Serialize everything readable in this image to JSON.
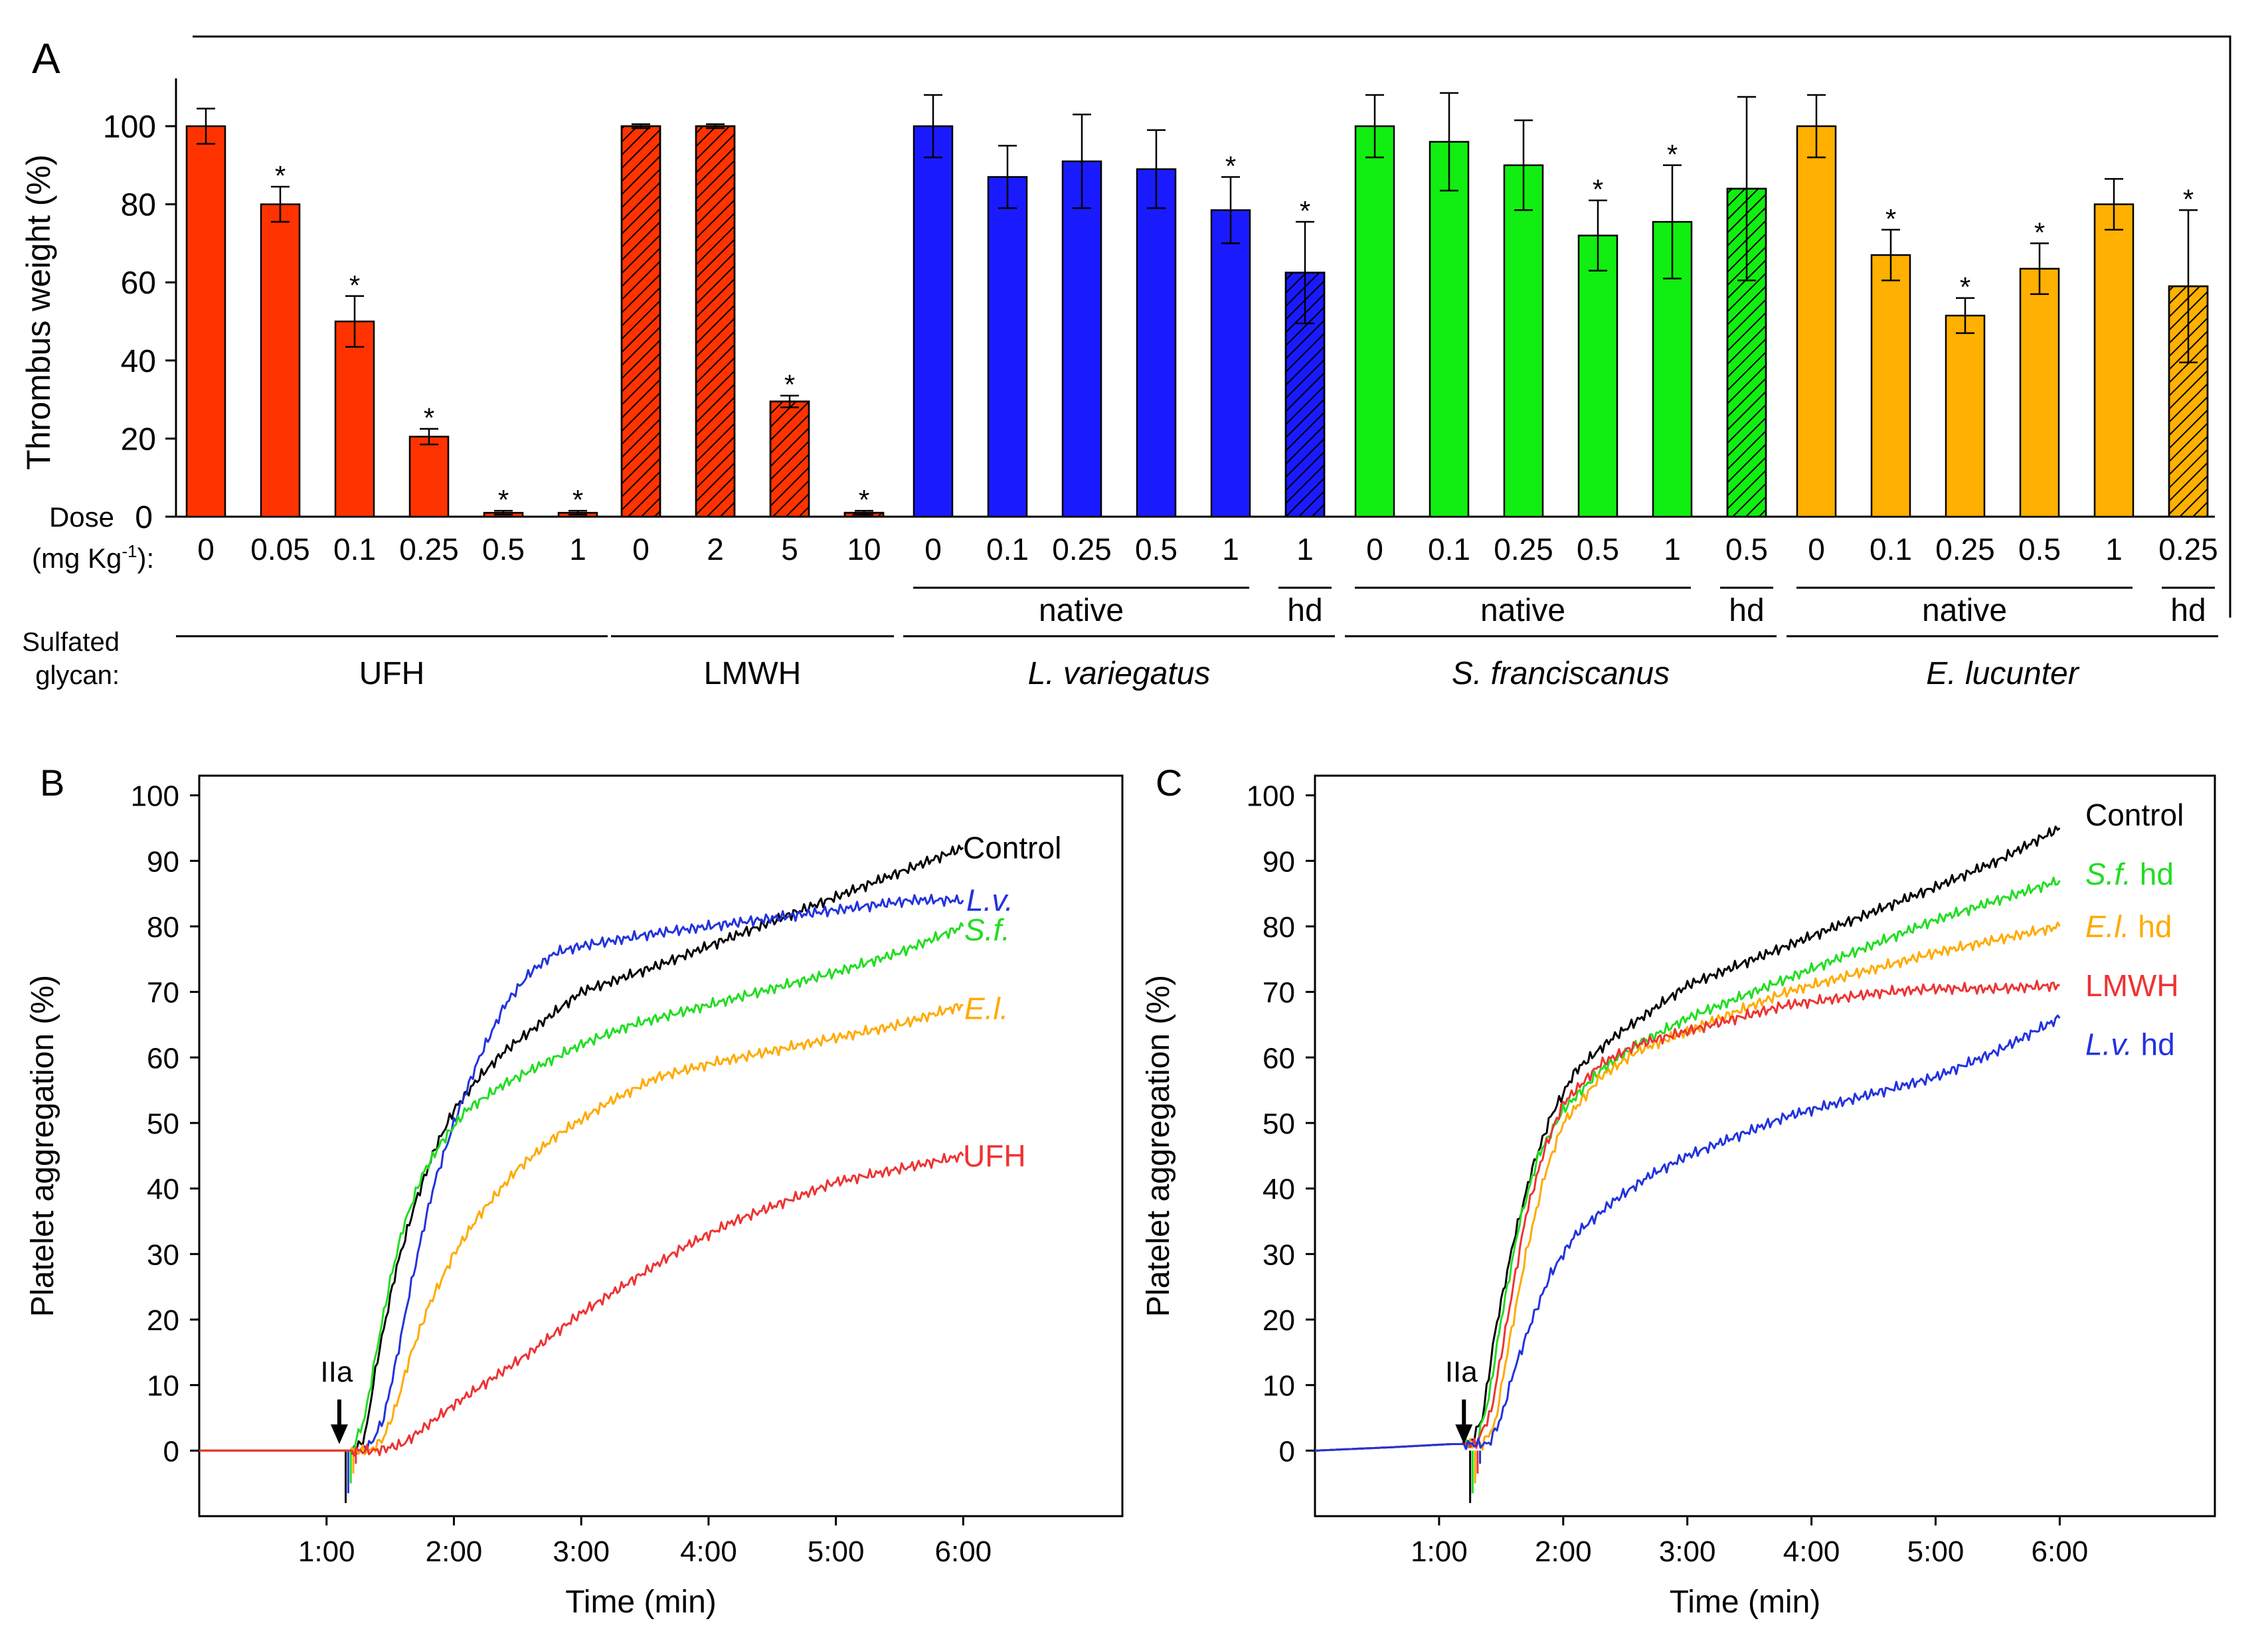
{
  "chart_data": [
    {
      "panel": "A",
      "type": "bar",
      "ylabel": "Thrombus weight (%)",
      "ylim": [
        0,
        110
      ],
      "yticks": [
        0,
        20,
        40,
        60,
        80,
        100
      ],
      "dose_label": "Dose",
      "dose_unit_label": "(mg Kg",
      "dose_unit_sup": "-1",
      "dose_unit_close": "):",
      "glycan_label_line1": "Sulfated",
      "glycan_label_line2": "glycan:",
      "groups": [
        {
          "name": "UFH",
          "italic": false,
          "color": "#ff3300",
          "bars": [
            {
              "dose": "0",
              "value": 100,
              "error": 4.5,
              "hatched": false,
              "star": false
            },
            {
              "dose": "0.05",
              "value": 80,
              "error": 4.5,
              "hatched": false,
              "star": true
            },
            {
              "dose": "0.1",
              "value": 50,
              "error": 6.5,
              "hatched": false,
              "star": true
            },
            {
              "dose": "0.25",
              "value": 20.5,
              "error": 2,
              "hatched": false,
              "star": true
            },
            {
              "dose": "0.5",
              "value": 1,
              "error": 0.5,
              "hatched": false,
              "star": true
            },
            {
              "dose": "1",
              "value": 1,
              "error": 0.5,
              "hatched": false,
              "star": true
            }
          ]
        },
        {
          "name": "LMWH",
          "italic": false,
          "color": "#ff3300",
          "bars": [
            {
              "dose": "0",
              "value": 100,
              "error": 0.5,
              "hatched": true,
              "star": false
            },
            {
              "dose": "2",
              "value": 100,
              "error": 0.5,
              "hatched": true,
              "star": false
            },
            {
              "dose": "5",
              "value": 29.5,
              "error": 1.5,
              "hatched": true,
              "star": true
            },
            {
              "dose": "10",
              "value": 1,
              "error": 0.5,
              "hatched": true,
              "star": true
            }
          ]
        },
        {
          "name": "L. variegatus",
          "italic": true,
          "color": "#1a1aff",
          "bars": [
            {
              "dose": "0",
              "value": 100,
              "error": 8,
              "hatched": false,
              "star": false
            },
            {
              "dose": "0.1",
              "value": 87,
              "error": 8,
              "hatched": false,
              "star": false
            },
            {
              "dose": "0.25",
              "value": 91,
              "error": 12,
              "hatched": false,
              "star": false
            },
            {
              "dose": "0.5",
              "value": 89,
              "error": 10,
              "hatched": false,
              "star": false
            },
            {
              "dose": "1",
              "value": 78.5,
              "error": 8.5,
              "hatched": false,
              "star": true
            },
            {
              "dose": "1",
              "value": 62.5,
              "error": 13,
              "hatched": true,
              "star": true
            }
          ]
        },
        {
          "name": "S. franciscanus",
          "italic": true,
          "color": "#11ee11",
          "bars": [
            {
              "dose": "0",
              "value": 100,
              "error": 8,
              "hatched": false,
              "star": false
            },
            {
              "dose": "0.1",
              "value": 96,
              "error": 12.5,
              "hatched": false,
              "star": false
            },
            {
              "dose": "0.25",
              "value": 90,
              "error": 11.5,
              "hatched": false,
              "star": false
            },
            {
              "dose": "0.5",
              "value": 72,
              "error": 9,
              "hatched": false,
              "star": true
            },
            {
              "dose": "1",
              "value": 75.5,
              "error": 14.5,
              "hatched": false,
              "star": true
            },
            {
              "dose": "0.5",
              "value": 84,
              "error": 23.5,
              "hatched": true,
              "star": false
            }
          ]
        },
        {
          "name": "E. lucunter",
          "italic": true,
          "color": "#ffb000",
          "bars": [
            {
              "dose": "0",
              "value": 100,
              "error": 8,
              "hatched": false,
              "star": false
            },
            {
              "dose": "0.1",
              "value": 67,
              "error": 6.5,
              "hatched": false,
              "star": true
            },
            {
              "dose": "0.25",
              "value": 51.5,
              "error": 4.5,
              "hatched": false,
              "star": true
            },
            {
              "dose": "0.5",
              "value": 63.5,
              "error": 6.5,
              "hatched": false,
              "star": true
            },
            {
              "dose": "1",
              "value": 80,
              "error": 6.5,
              "hatched": false,
              "star": false
            },
            {
              "dose": "0.25",
              "value": 59,
              "error": 19.5,
              "hatched": true,
              "star": true
            }
          ]
        }
      ],
      "subgroup_labels": {
        "native": "native",
        "hd": "hd"
      },
      "significance_marker": "*"
    },
    {
      "panel": "B",
      "type": "line",
      "xlabel": "Time (min)",
      "ylabel": "Platelet aggregation (%)",
      "xlim": [
        0,
        7.25
      ],
      "ylim": [
        -10,
        103
      ],
      "yticks": [
        0,
        10,
        20,
        30,
        40,
        50,
        60,
        70,
        80,
        90,
        100
      ],
      "xticks": [
        1,
        2,
        3,
        4,
        5,
        6
      ],
      "xtick_labels": [
        "1:00",
        "2:00",
        "3:00",
        "4:00",
        "5:00",
        "6:00"
      ],
      "annotation": {
        "text": "IIa",
        "x": 1.1
      },
      "series": [
        {
          "name": "Control",
          "italic": false,
          "color": "#000000",
          "x": [
            0,
            1.05,
            1.15,
            1.22,
            1.3,
            1.4,
            1.55,
            1.7,
            1.85,
            2.0,
            2.2,
            2.4,
            2.6,
            2.8,
            3.0,
            3.3,
            3.6,
            4.0,
            4.4,
            4.8,
            5.2,
            5.6,
            6.0
          ],
          "y": [
            0,
            0,
            0,
            0,
            2,
            14,
            28,
            38,
            46,
            52,
            57,
            61,
            64,
            67,
            70,
            72,
            74,
            77,
            80,
            83,
            86,
            89,
            92
          ]
        },
        {
          "name": "L.v.",
          "italic": true,
          "color": "#2233dd",
          "x": [
            0,
            1.1,
            1.25,
            1.35,
            1.45,
            1.55,
            1.65,
            1.75,
            1.85,
            2.0,
            2.2,
            2.4,
            2.6,
            2.8,
            3.0,
            3.3,
            3.6,
            4.0,
            4.4,
            4.8,
            5.2,
            5.6,
            6.0
          ],
          "y": [
            0,
            0,
            0,
            1,
            5,
            14,
            24,
            33,
            41,
            50,
            60,
            68,
            73,
            76,
            77,
            78,
            79,
            80,
            81,
            82,
            83,
            84,
            84
          ]
        },
        {
          "name": "S.f.",
          "italic": true,
          "color": "#22dd22",
          "x": [
            0,
            1.05,
            1.2,
            1.3,
            1.4,
            1.5,
            1.6,
            1.75,
            1.9,
            2.1,
            2.4,
            2.7,
            3.0,
            3.4,
            3.8,
            4.2,
            4.6,
            5.0,
            5.5,
            6.0
          ],
          "y": [
            0,
            0,
            0,
            5,
            16,
            26,
            34,
            42,
            47,
            52,
            56,
            59,
            62,
            65,
            67,
            69,
            71,
            73,
            76,
            80
          ]
        },
        {
          "name": "E.l.",
          "italic": true,
          "color": "#ffaa00",
          "x": [
            0,
            1.1,
            1.35,
            1.45,
            1.55,
            1.65,
            1.8,
            2.0,
            2.2,
            2.5,
            2.8,
            3.2,
            3.6,
            4.0,
            4.5,
            5.0,
            5.5,
            6.0
          ],
          "y": [
            0,
            0,
            0,
            2,
            7,
            14,
            22,
            30,
            36,
            43,
            48,
            53,
            57,
            59,
            61,
            63,
            65,
            68
          ]
        },
        {
          "name": "UFH",
          "italic": false,
          "color": "#ee3333",
          "x": [
            0,
            1.1,
            1.4,
            1.6,
            1.8,
            2.0,
            2.3,
            2.6,
            3.0,
            3.4,
            3.8,
            4.2,
            4.6,
            5.0,
            5.5,
            6.0
          ],
          "y": [
            0,
            0,
            0,
            1,
            4,
            7,
            11,
            15,
            21,
            26,
            31,
            35,
            38,
            41,
            43,
            45
          ]
        }
      ]
    },
    {
      "panel": "C",
      "type": "line",
      "xlabel": "Time (min)",
      "ylabel": "Platelet aggregation (%)",
      "xlim": [
        0,
        7.25
      ],
      "ylim": [
        -10,
        103
      ],
      "yticks": [
        0,
        10,
        20,
        30,
        40,
        50,
        60,
        70,
        80,
        90,
        100
      ],
      "xticks": [
        1,
        2,
        3,
        4,
        5,
        6
      ],
      "xtick_labels": [
        "1:00",
        "2:00",
        "3:00",
        "4:00",
        "5:00",
        "6:00"
      ],
      "annotation": {
        "text": "IIa",
        "x": 1.2
      },
      "series": [
        {
          "name": "Control",
          "italic": false,
          "color": "#000000",
          "x": [
            0,
            0.6,
            1.1,
            1.25,
            1.35,
            1.45,
            1.6,
            1.75,
            1.9,
            2.1,
            2.4,
            2.7,
            3.0,
            3.4,
            3.8,
            4.2,
            4.6,
            5.0,
            5.5,
            6.0
          ],
          "y": [
            0,
            0.5,
            1,
            1,
            5,
            18,
            32,
            43,
            51,
            58,
            63,
            67,
            71,
            74,
            77,
            80,
            83,
            86,
            90,
            95
          ]
        },
        {
          "name": "S.f.",
          "suffix": " hd",
          "italic": true,
          "color": "#22dd22",
          "x": [
            0,
            0.6,
            1.1,
            1.3,
            1.4,
            1.5,
            1.65,
            1.8,
            2.0,
            2.3,
            2.6,
            3.0,
            3.4,
            3.8,
            4.2,
            4.6,
            5.0,
            5.5,
            6.0
          ],
          "y": [
            0,
            0.5,
            1,
            1,
            8,
            20,
            35,
            45,
            52,
            58,
            62,
            66,
            69,
            72,
            75,
            78,
            81,
            84,
            87
          ]
        },
        {
          "name": "E.l.",
          "suffix": " hd",
          "italic": true,
          "color": "#ffaa00",
          "x": [
            0,
            0.6,
            1.1,
            1.35,
            1.45,
            1.55,
            1.7,
            1.85,
            2.0,
            2.3,
            2.6,
            3.0,
            3.4,
            3.8,
            4.2,
            4.6,
            5.0,
            5.5,
            6.0
          ],
          "y": [
            0,
            0.5,
            1,
            1,
            4,
            15,
            30,
            42,
            50,
            57,
            61,
            64,
            67,
            70,
            72,
            74,
            76,
            78,
            80
          ]
        },
        {
          "name": "LMWH",
          "suffix": "",
          "italic": false,
          "color": "#ee3333",
          "x": [
            0,
            0.6,
            1.1,
            1.3,
            1.42,
            1.55,
            1.7,
            1.85,
            2.0,
            2.3,
            2.6,
            3.0,
            3.4,
            3.8,
            4.2,
            4.6,
            5.0,
            5.5,
            6.0
          ],
          "y": [
            0,
            0.5,
            1,
            1,
            6,
            20,
            36,
            46,
            53,
            59,
            62,
            64,
            66,
            68,
            69,
            70,
            70.5,
            70.5,
            71
          ]
        },
        {
          "name": "L.v.",
          "suffix": " hd",
          "italic": true,
          "color": "#2233dd",
          "x": [
            0,
            0.6,
            1.1,
            1.4,
            1.5,
            1.6,
            1.75,
            1.9,
            2.1,
            2.4,
            2.7,
            3.0,
            3.4,
            3.8,
            4.2,
            4.6,
            5.0,
            5.5,
            6.0
          ],
          "y": [
            0,
            0.5,
            1,
            1,
            5,
            12,
            20,
            27,
            33,
            38,
            42,
            45,
            48,
            51,
            53,
            55,
            57,
            61,
            66
          ]
        }
      ]
    }
  ]
}
